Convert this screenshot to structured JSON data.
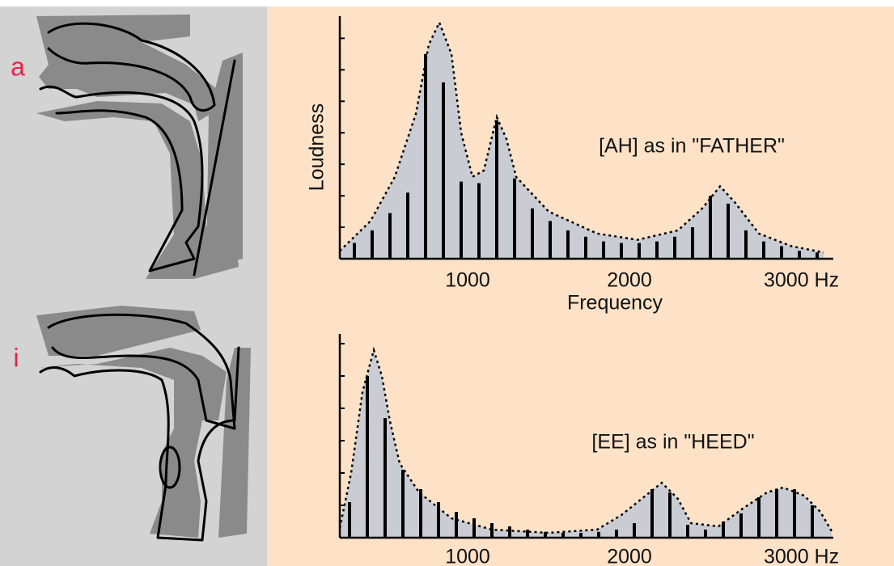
{
  "panels": [
    {
      "label": "a"
    },
    {
      "label": "i"
    }
  ],
  "chart_data": [
    {
      "type": "bar",
      "annotation": "[AH] as in \"FATHER\"",
      "ylabel": "Loudness",
      "xlabel": "Frequency",
      "xlim": [
        210,
        3260
      ],
      "xticks": [
        1000,
        2000,
        {
          "value": 3000,
          "label": "3000 Hz"
        }
      ],
      "ylim": [
        0,
        7.6
      ],
      "yticks": [
        1,
        2,
        3,
        4,
        5,
        6,
        7
      ],
      "color": "#000000",
      "fill": "#c9ccd3",
      "harmonics": {
        "x": [
          300,
          410,
          520,
          630,
          740,
          850,
          960,
          1070,
          1180,
          1290,
          1400,
          1510,
          1620,
          1730,
          1840,
          1950,
          2060,
          2170,
          2280,
          2390,
          2500,
          2610,
          2720,
          2830,
          2940,
          3050,
          3160
        ],
        "values": [
          0.5,
          0.9,
          1.45,
          2.1,
          6.5,
          5.6,
          2.45,
          2.4,
          4.4,
          2.55,
          1.6,
          1.2,
          0.9,
          0.7,
          0.55,
          0.5,
          0.5,
          0.55,
          0.7,
          1.0,
          2.0,
          1.75,
          0.9,
          0.55,
          0.4,
          0.25,
          0.2
        ]
      },
      "envelope": {
        "x": [
          210,
          400,
          550,
          680,
          760,
          825,
          900,
          960,
          1030,
          1100,
          1180,
          1240,
          1300,
          1500,
          1800,
          2050,
          2300,
          2450,
          2560,
          2650,
          2800,
          3000,
          3200
        ],
        "values": [
          0.25,
          1.2,
          2.6,
          4.6,
          6.8,
          7.5,
          6.5,
          4.0,
          2.6,
          2.8,
          4.5,
          3.8,
          2.6,
          1.5,
          0.8,
          0.6,
          0.9,
          1.6,
          2.3,
          1.8,
          0.8,
          0.4,
          0.2
        ]
      }
    },
    {
      "type": "bar",
      "annotation": "[EE] as in \"HEED\"",
      "xlim": [
        210,
        3260
      ],
      "xticks": [
        1000,
        2000,
        {
          "value": 3000,
          "label": "3000 Hz"
        }
      ],
      "ylim": [
        0,
        6.2
      ],
      "yticks": [
        1,
        2,
        3,
        4,
        5,
        6
      ],
      "color": "#000000",
      "fill": "#c9ccd3",
      "harmonics": {
        "x": [
          270,
          380,
          490,
          600,
          710,
          820,
          930,
          1040,
          1150,
          1260,
          1370,
          1480,
          1590,
          1700,
          1810,
          1920,
          2030,
          2140,
          2250,
          2360,
          2470,
          2580,
          2690,
          2800,
          2910,
          3020,
          3130
        ],
        "values": [
          1.1,
          5.0,
          3.7,
          2.1,
          1.5,
          1.1,
          0.8,
          0.6,
          0.45,
          0.35,
          0.25,
          0.18,
          0.15,
          0.15,
          0.18,
          0.25,
          0.45,
          1.5,
          1.4,
          0.4,
          0.25,
          0.5,
          0.75,
          1.25,
          1.5,
          1.5,
          1.0
        ]
      },
      "envelope": {
        "x": [
          210,
          280,
          350,
          420,
          470,
          520,
          580,
          700,
          900,
          1150,
          1500,
          1800,
          1950,
          2100,
          2200,
          2300,
          2380,
          2550,
          2700,
          2850,
          2950,
          3080,
          3180,
          3250
        ],
        "values": [
          0.3,
          2.0,
          4.5,
          5.8,
          5.0,
          3.6,
          2.3,
          1.4,
          0.6,
          0.25,
          0.15,
          0.25,
          0.7,
          1.3,
          1.7,
          1.2,
          0.45,
          0.35,
          0.9,
          1.4,
          1.55,
          1.3,
          0.8,
          0.2
        ]
      }
    }
  ]
}
